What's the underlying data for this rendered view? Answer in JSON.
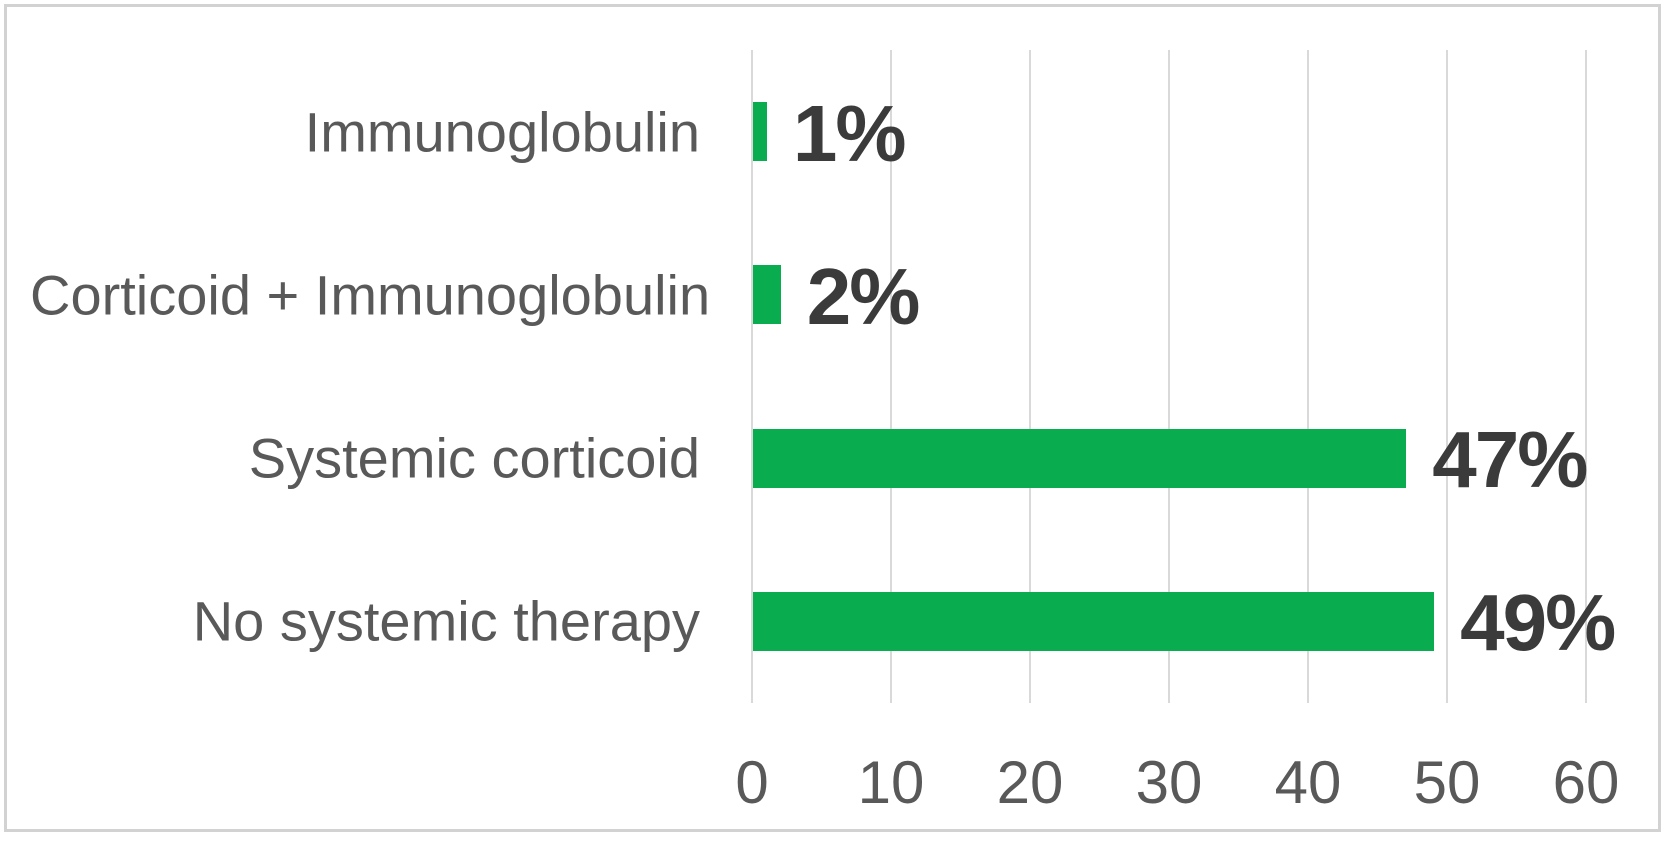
{
  "chart_data": {
    "type": "bar",
    "orientation": "horizontal",
    "title": "",
    "xlabel": "",
    "ylabel": "",
    "categories": [
      "Immunoglobulin",
      "Corticoid + Immunoglobulin",
      "Systemic corticoid",
      "No systemic therapy"
    ],
    "values": [
      1,
      2,
      47,
      49
    ],
    "value_labels": [
      "1%",
      "2%",
      "47%",
      "49%"
    ],
    "x_ticks": [
      0,
      10,
      20,
      30,
      40,
      50,
      60
    ],
    "xlim": [
      0,
      60
    ],
    "grid": true,
    "legend": false,
    "colors": {
      "bar": "#0aac50",
      "gridline": "#d9d9d9",
      "category_label": "#595959",
      "value_label": "#3b3b3b",
      "tick_label": "#595959",
      "frame_border": "#d2d2d2",
      "background": "#ffffff"
    }
  }
}
